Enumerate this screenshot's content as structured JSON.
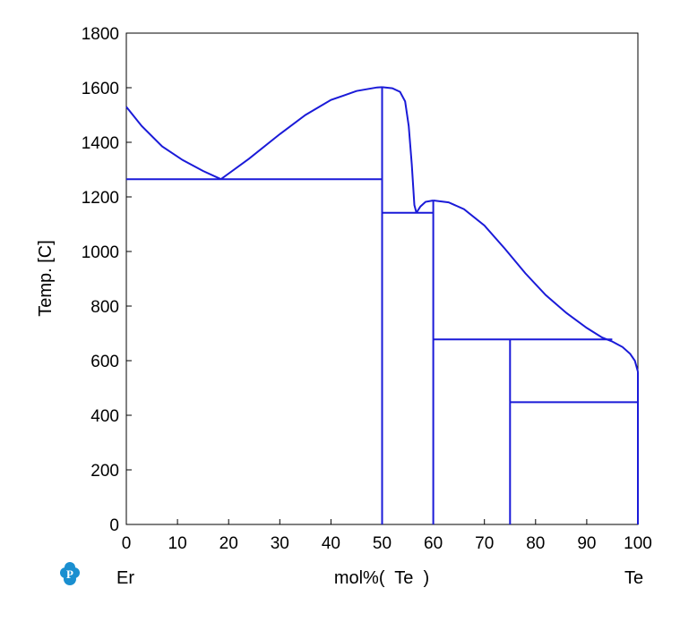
{
  "chart_data": {
    "type": "line",
    "title": "",
    "xlabel": "mol%(  Te  )",
    "ylabel": "Temp.  [C]",
    "xlim": [
      0,
      100
    ],
    "ylim": [
      0,
      1800
    ],
    "grid": false,
    "x_ticks": [
      "0",
      "10",
      "20",
      "30",
      "40",
      "50",
      "60",
      "70",
      "80",
      "90",
      "100"
    ],
    "y_ticks": [
      "0",
      "200",
      "400",
      "600",
      "800",
      "1000",
      "1200",
      "1400",
      "1600",
      "1800"
    ],
    "left_component": "Er",
    "right_component": "Te",
    "line_color": "#1a1ad8",
    "series": [
      {
        "points": [
          [
            0,
            1530
          ],
          [
            3,
            1460
          ],
          [
            7,
            1385
          ],
          [
            11,
            1335
          ],
          [
            15,
            1295
          ],
          [
            18.5,
            1265
          ]
        ]
      },
      {
        "points": [
          [
            18.5,
            1265
          ],
          [
            24,
            1340
          ],
          [
            30,
            1430
          ],
          [
            35,
            1500
          ],
          [
            40,
            1555
          ],
          [
            45,
            1588
          ],
          [
            49,
            1601
          ],
          [
            50,
            1602
          ]
        ]
      },
      {
        "points": [
          [
            50,
            1602
          ],
          [
            52,
            1598
          ],
          [
            53.5,
            1585
          ],
          [
            54.5,
            1550
          ],
          [
            55.2,
            1460
          ],
          [
            55.8,
            1320
          ],
          [
            56.3,
            1170
          ],
          [
            56.7,
            1142
          ]
        ]
      },
      {
        "points": [
          [
            56.7,
            1142
          ],
          [
            57.5,
            1165
          ],
          [
            58.5,
            1182
          ],
          [
            60,
            1187
          ]
        ]
      },
      {
        "points": [
          [
            60,
            1187
          ],
          [
            63,
            1180
          ],
          [
            66,
            1155
          ],
          [
            70,
            1095
          ],
          [
            74,
            1010
          ],
          [
            78,
            920
          ],
          [
            82,
            840
          ],
          [
            86,
            775
          ],
          [
            90,
            720
          ],
          [
            93,
            685
          ],
          [
            95,
            670
          ],
          [
            97,
            650
          ],
          [
            98.5,
            625
          ],
          [
            99.4,
            600
          ],
          [
            100,
            560
          ]
        ]
      },
      {
        "points": [
          [
            0,
            1265
          ],
          [
            50,
            1265
          ]
        ]
      },
      {
        "points": [
          [
            50,
            1142
          ],
          [
            60,
            1142
          ]
        ]
      },
      {
        "points": [
          [
            60,
            678
          ],
          [
            95,
            678
          ]
        ]
      },
      {
        "points": [
          [
            75,
            448
          ],
          [
            100,
            448
          ]
        ]
      },
      {
        "points": [
          [
            50,
            0
          ],
          [
            50,
            1602
          ]
        ]
      },
      {
        "points": [
          [
            60,
            0
          ],
          [
            60,
            1187
          ]
        ]
      },
      {
        "points": [
          [
            75,
            0
          ],
          [
            75,
            678
          ]
        ]
      },
      {
        "points": [
          [
            100,
            0
          ],
          [
            100,
            560
          ]
        ]
      }
    ]
  }
}
